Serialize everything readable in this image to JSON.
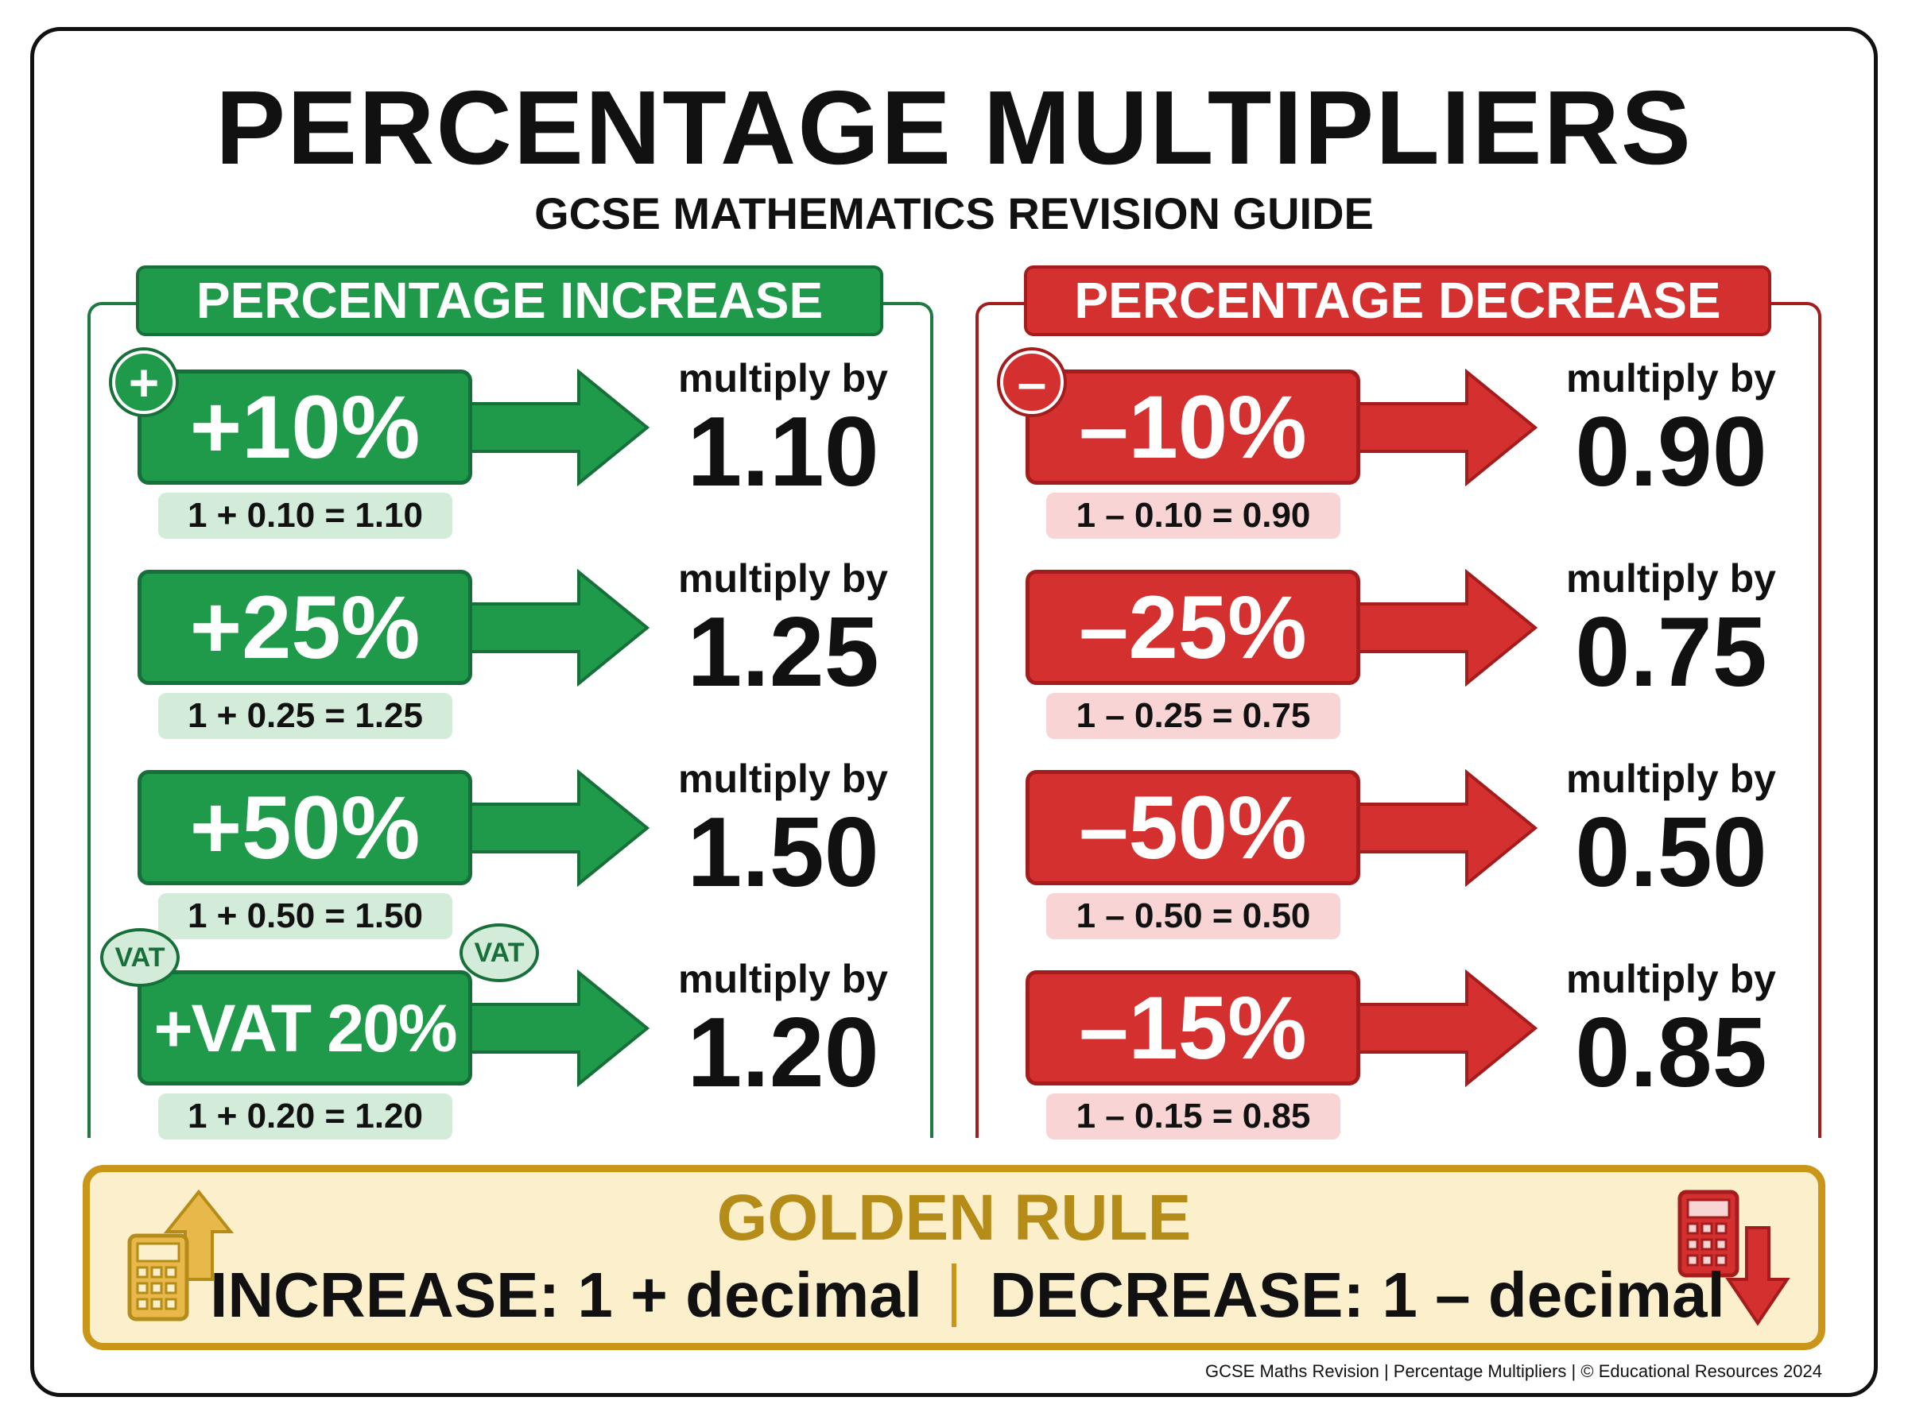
{
  "title": "PERCENTAGE MULTIPLIERS",
  "subtitle": "GCSE MATHEMATICS REVISION GUIDE",
  "increase": {
    "header": "PERCENTAGE INCREASE",
    "sign": "+",
    "vat_bubble": "VAT",
    "rows": [
      {
        "label": "+10%",
        "formula": "1 + 0.10 = 1.10",
        "mult_label": "multiply by",
        "value": "1.10"
      },
      {
        "label": "+25%",
        "formula": "1 + 0.25 = 1.25",
        "mult_label": "multiply by",
        "value": "1.25"
      },
      {
        "label": "+50%",
        "formula": "1 + 0.50 = 1.50",
        "mult_label": "multiply by",
        "value": "1.50"
      },
      {
        "label": "+VAT 20%",
        "formula": "1 + 0.20 = 1.20",
        "mult_label": "multiply by",
        "value": "1.20"
      }
    ]
  },
  "decrease": {
    "header": "PERCENTAGE DECREASE",
    "sign": "–",
    "rows": [
      {
        "label": "–10%",
        "formula": "1 – 0.10 = 0.90",
        "mult_label": "multiply by",
        "value": "0.90"
      },
      {
        "label": "–25%",
        "formula": "1 – 0.25 = 0.75",
        "mult_label": "multiply by",
        "value": "0.75"
      },
      {
        "label": "–50%",
        "formula": "1 – 0.50 = 0.50",
        "mult_label": "multiply by",
        "value": "0.50"
      },
      {
        "label": "–15%",
        "formula": "1 – 0.15 = 0.85",
        "mult_label": "multiply by",
        "value": "0.85"
      }
    ]
  },
  "golden_rule": {
    "title": "GOLDEN RULE",
    "increase": "INCREASE: 1 + decimal",
    "decrease": "DECREASE: 1 – decimal"
  },
  "footer": "GCSE Maths Revision | Percentage Multipliers | © Educational Resources 2024",
  "colors": {
    "green": "#1f9a4b",
    "red": "#d3302f",
    "gold": "#c9961a"
  }
}
